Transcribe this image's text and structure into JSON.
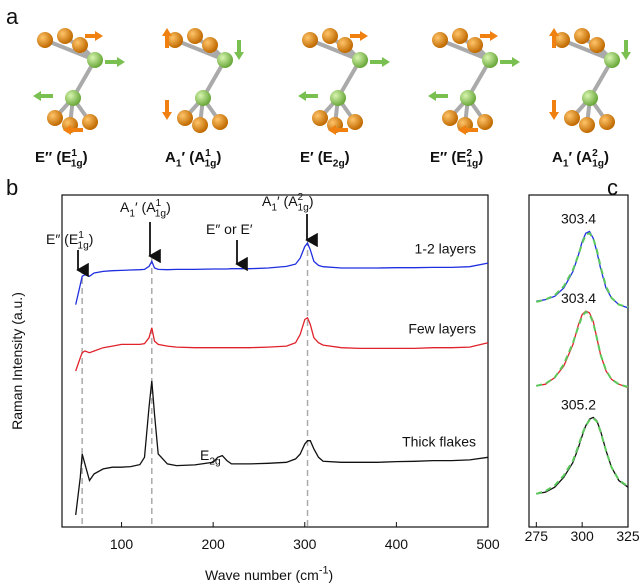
{
  "panel_a": {
    "label": "a",
    "modes": [
      [
        {
          "text": "E″ (E"
        },
        {
          "sup": "1"
        },
        {
          "sub": "1g"
        },
        {
          "text": ")"
        }
      ],
      [
        {
          "text": "A"
        },
        {
          "sub": "1"
        },
        {
          "text": "′ (A"
        },
        {
          "sup": "1"
        },
        {
          "sub": "1g"
        },
        {
          "text": ")"
        }
      ],
      [
        {
          "text": "E′ (E"
        },
        {
          "sub": "2g"
        },
        {
          "text": ")"
        }
      ],
      [
        {
          "text": "E″ (E"
        },
        {
          "sup": "2"
        },
        {
          "sub": "1g"
        },
        {
          "text": ")"
        }
      ],
      [
        {
          "text": "A"
        },
        {
          "sub": "1"
        },
        {
          "text": "′ (A"
        },
        {
          "sup": "2"
        },
        {
          "sub": "1g"
        },
        {
          "text": ")"
        }
      ]
    ]
  },
  "chart_data": [
    {
      "type": "line",
      "panel": "b",
      "xlabel": [
        {
          "text": "Wave number (cm"
        },
        {
          "sup": "-1"
        },
        {
          "text": ")"
        }
      ],
      "ylabel": "Raman Intensity (a.u.)",
      "xlim": [
        35,
        500
      ],
      "ylim": [
        0,
        10
      ],
      "xticks": [
        100,
        200,
        300,
        400,
        500
      ],
      "peaks": [
        57,
        133,
        303
      ],
      "annotations": [
        [
          {
            "text": "E″ (E"
          },
          {
            "sup": "1"
          },
          {
            "sub": "1g"
          },
          {
            "text": ")"
          }
        ],
        [
          {
            "text": "A"
          },
          {
            "sub": "1"
          },
          {
            "text": "′ (A"
          },
          {
            "sup": "1"
          },
          {
            "sub": "1g"
          },
          {
            "text": ")"
          }
        ],
        [
          {
            "text": "E″ or E′"
          }
        ],
        [
          {
            "text": "A"
          },
          {
            "sub": "1"
          },
          {
            "text": "′ (A"
          },
          {
            "sup": "2"
          },
          {
            "sub": "1g"
          },
          {
            "text": ")"
          }
        ],
        [
          {
            "text": "E"
          },
          {
            "sub": "2g"
          }
        ]
      ],
      "x": [
        50,
        55,
        57,
        60,
        65,
        70,
        80,
        90,
        100,
        110,
        120,
        125,
        130,
        133,
        136,
        140,
        150,
        160,
        180,
        200,
        205,
        210,
        215,
        220,
        240,
        260,
        280,
        290,
        295,
        300,
        303,
        306,
        310,
        315,
        320,
        340,
        360,
        380,
        400,
        420,
        440,
        460,
        480,
        500
      ],
      "series": [
        {
          "name": "1-2 layers",
          "color": "#1f2ee0",
          "values": [
            6.7,
            7.3,
            7.55,
            7.6,
            7.55,
            7.65,
            7.7,
            7.72,
            7.73,
            7.74,
            7.75,
            7.76,
            7.85,
            8.0,
            7.8,
            7.76,
            7.75,
            7.76,
            7.76,
            7.77,
            7.77,
            7.77,
            7.77,
            7.78,
            7.78,
            7.8,
            7.85,
            7.92,
            8.1,
            8.45,
            8.55,
            8.35,
            8.0,
            7.88,
            7.84,
            7.8,
            7.8,
            7.8,
            7.81,
            7.81,
            7.82,
            7.82,
            7.84,
            7.95
          ]
        },
        {
          "name": "Few layers",
          "color": "#e0222a",
          "values": [
            4.7,
            5.1,
            5.25,
            5.3,
            5.25,
            5.3,
            5.4,
            5.45,
            5.5,
            5.5,
            5.5,
            5.52,
            5.7,
            6.0,
            5.6,
            5.5,
            5.45,
            5.42,
            5.4,
            5.4,
            5.4,
            5.4,
            5.4,
            5.4,
            5.4,
            5.42,
            5.45,
            5.55,
            5.8,
            6.25,
            6.3,
            6.1,
            5.7,
            5.55,
            5.48,
            5.4,
            5.38,
            5.38,
            5.38,
            5.38,
            5.4,
            5.4,
            5.42,
            5.55
          ]
        },
        {
          "name": "Thick flakes",
          "color": "#111111",
          "values": [
            0.36,
            1.5,
            2.2,
            1.9,
            1.4,
            1.6,
            1.75,
            1.8,
            1.8,
            1.82,
            1.88,
            2.1,
            3.6,
            4.4,
            3.4,
            2.2,
            1.9,
            1.85,
            1.87,
            1.95,
            2.1,
            2.15,
            2.0,
            1.9,
            1.9,
            1.92,
            1.95,
            2.05,
            2.2,
            2.5,
            2.6,
            2.6,
            2.35,
            2.1,
            1.98,
            1.95,
            1.95,
            1.95,
            1.97,
            1.98,
            2.0,
            2.0,
            2.02,
            2.1
          ]
        }
      ]
    },
    {
      "type": "line",
      "panel": "c",
      "xlim": [
        271,
        325
      ],
      "ylim": [
        0,
        10
      ],
      "xticks": [
        275,
        300,
        325
      ],
      "x": [
        275,
        280,
        285,
        290,
        295,
        298,
        300,
        302,
        304,
        306,
        308,
        310,
        313,
        316,
        320,
        325
      ],
      "peak_labels": [
        "303.4",
        "303.4",
        "305.2"
      ],
      "series": [
        {
          "color": "#1f2ee0",
          "values": [
            6.8,
            6.85,
            6.95,
            7.2,
            7.7,
            8.2,
            8.6,
            8.85,
            8.9,
            8.7,
            8.3,
            7.8,
            7.2,
            6.9,
            6.7,
            6.6
          ]
        },
        {
          "color": "#5ac85a",
          "dash": true,
          "values": [
            6.78,
            6.85,
            6.98,
            7.25,
            7.75,
            8.2,
            8.55,
            8.8,
            8.85,
            8.7,
            8.35,
            7.85,
            7.25,
            6.9,
            6.7,
            6.62
          ]
        },
        {
          "color": "#e0222a",
          "values": [
            4.25,
            4.3,
            4.5,
            4.85,
            5.5,
            6.1,
            6.4,
            6.5,
            6.45,
            6.2,
            5.7,
            5.2,
            4.7,
            4.45,
            4.3,
            4.2
          ]
        },
        {
          "color": "#5ac85a",
          "dash": true,
          "values": [
            4.25,
            4.32,
            4.5,
            4.9,
            5.55,
            6.05,
            6.35,
            6.48,
            6.42,
            6.15,
            5.7,
            5.2,
            4.72,
            4.45,
            4.3,
            4.22
          ]
        },
        {
          "color": "#111111",
          "values": [
            1.0,
            1.05,
            1.2,
            1.5,
            1.95,
            2.4,
            2.75,
            3.05,
            3.25,
            3.3,
            3.2,
            2.9,
            2.3,
            1.8,
            1.4,
            1.2
          ]
        },
        {
          "color": "#5ac85a",
          "dash": true,
          "values": [
            1.0,
            1.08,
            1.25,
            1.55,
            2.0,
            2.45,
            2.8,
            3.05,
            3.22,
            3.28,
            3.18,
            2.88,
            2.3,
            1.8,
            1.42,
            1.22
          ]
        }
      ]
    }
  ]
}
